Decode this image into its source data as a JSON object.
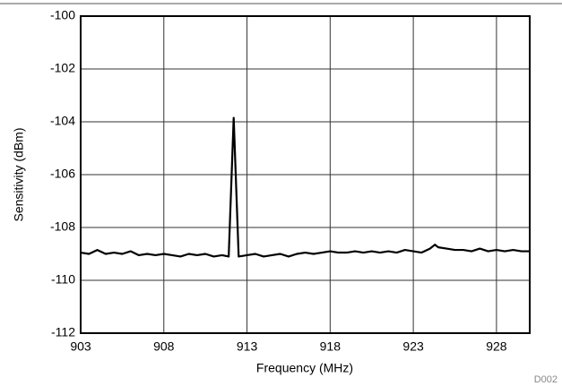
{
  "chart_data": {
    "type": "line",
    "xlabel": "Frequency (MHz)",
    "ylabel": "Sensitivity (dBm)",
    "note": "D002",
    "x": [
      903,
      903.5,
      904,
      904.5,
      905,
      905.5,
      906,
      906.5,
      907,
      907.5,
      908,
      908.5,
      909,
      909.5,
      910,
      910.5,
      911,
      911.5,
      911.9,
      912.2,
      912.5,
      913,
      913.5,
      914,
      914.5,
      915,
      915.5,
      916,
      916.5,
      917,
      917.5,
      918,
      918.5,
      919,
      919.5,
      920,
      920.5,
      921,
      921.5,
      922,
      922.5,
      923,
      923.5,
      924,
      924.3,
      924.5,
      925,
      925.5,
      926,
      926.5,
      927,
      927.5,
      928,
      928.5,
      929,
      929.5,
      930
    ],
    "series": [
      {
        "color": "#000000",
        "values": [
          -108.95,
          -109.0,
          -108.85,
          -109.0,
          -108.95,
          -109.0,
          -108.9,
          -109.05,
          -109.0,
          -109.05,
          -109.0,
          -109.05,
          -109.1,
          -109.0,
          -109.05,
          -109.0,
          -109.1,
          -109.05,
          -109.1,
          -103.85,
          -109.1,
          -109.05,
          -109.0,
          -109.1,
          -109.05,
          -109.0,
          -109.1,
          -109.0,
          -108.95,
          -109.0,
          -108.95,
          -108.9,
          -108.95,
          -108.95,
          -108.9,
          -108.95,
          -108.9,
          -108.95,
          -108.9,
          -108.95,
          -108.85,
          -108.9,
          -108.95,
          -108.8,
          -108.65,
          -108.75,
          -108.8,
          -108.85,
          -108.85,
          -108.9,
          -108.8,
          -108.9,
          -108.85,
          -108.9,
          -108.85,
          -108.9,
          -108.9
        ]
      }
    ],
    "xlim": [
      903,
      930
    ],
    "xticks": [
      903,
      908,
      913,
      918,
      923,
      928
    ],
    "ylim": [
      -112,
      -100
    ],
    "yticks": [
      -112,
      -110,
      -108,
      -106,
      -104,
      -102,
      -100
    ],
    "grid": true
  }
}
